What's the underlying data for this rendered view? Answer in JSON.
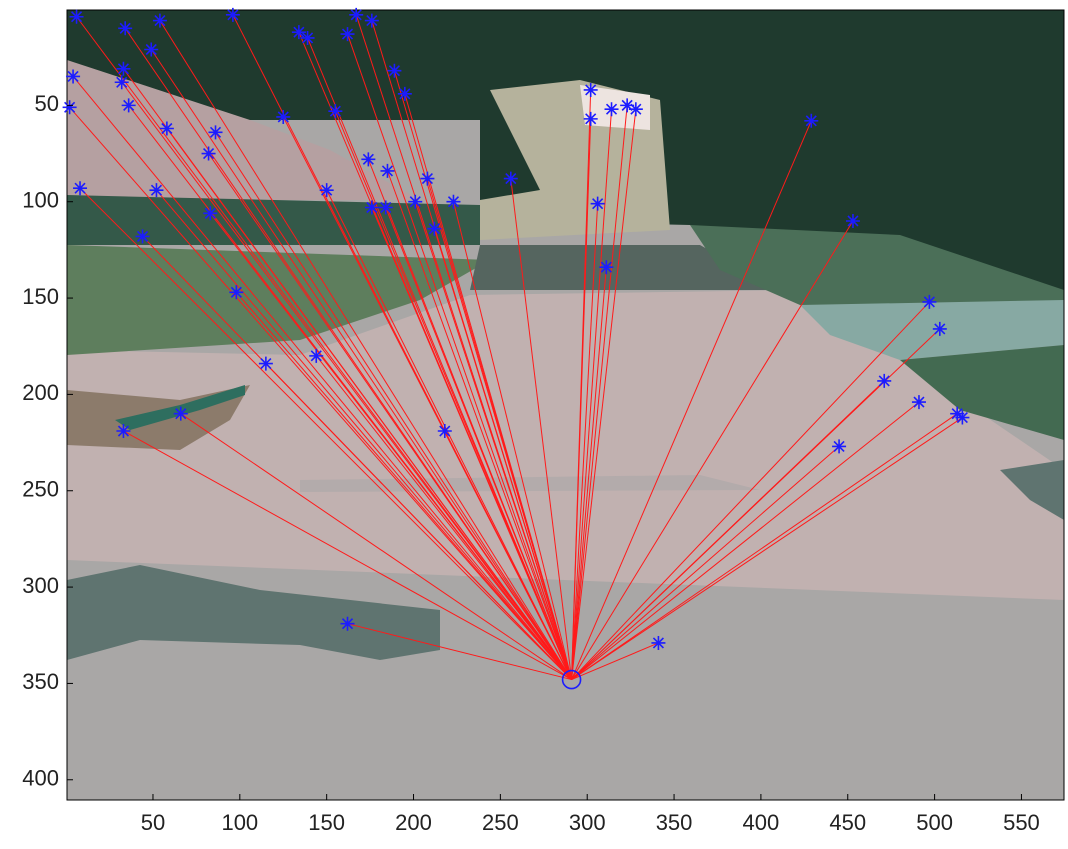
{
  "chart_data": {
    "type": "scatter",
    "x": [
      6,
      34,
      54,
      96,
      134,
      139,
      167,
      176,
      162,
      4,
      2,
      33,
      32,
      49,
      36,
      58,
      86,
      82,
      83,
      52,
      8,
      44,
      98,
      115,
      144,
      150,
      125,
      155,
      189,
      195,
      174,
      185,
      176,
      184,
      208,
      201,
      212,
      223,
      256,
      218,
      66,
      33,
      162,
      302,
      302,
      314,
      323,
      328,
      306,
      311,
      429,
      453,
      497,
      503,
      471,
      491,
      445,
      513,
      516,
      341
    ],
    "y": [
      4,
      10,
      6,
      3,
      12,
      15,
      3,
      6,
      13,
      35,
      51,
      31,
      38,
      21,
      50,
      62,
      64,
      75,
      106,
      94,
      93,
      118,
      147,
      184,
      180,
      94,
      56,
      53,
      32,
      44,
      78,
      84,
      103,
      103,
      88,
      100,
      114,
      100,
      88,
      219,
      210,
      219,
      319,
      42,
      57,
      52,
      50,
      52,
      101,
      134,
      58,
      110,
      152,
      166,
      193,
      204,
      227,
      210,
      212,
      329
    ],
    "marker_color": "#1c1cff",
    "origin": {
      "x": 291,
      "y": 348
    },
    "line_color": "#ff1a1a",
    "xlim": [
      0.5,
      574.5
    ],
    "ylim": [
      0.5,
      410.5
    ],
    "y_reversed": true,
    "xticks": [
      50,
      100,
      150,
      200,
      250,
      300,
      350,
      400,
      450,
      500,
      550
    ],
    "yticks": [
      50,
      100,
      150,
      200,
      250,
      300,
      350,
      400
    ]
  }
}
